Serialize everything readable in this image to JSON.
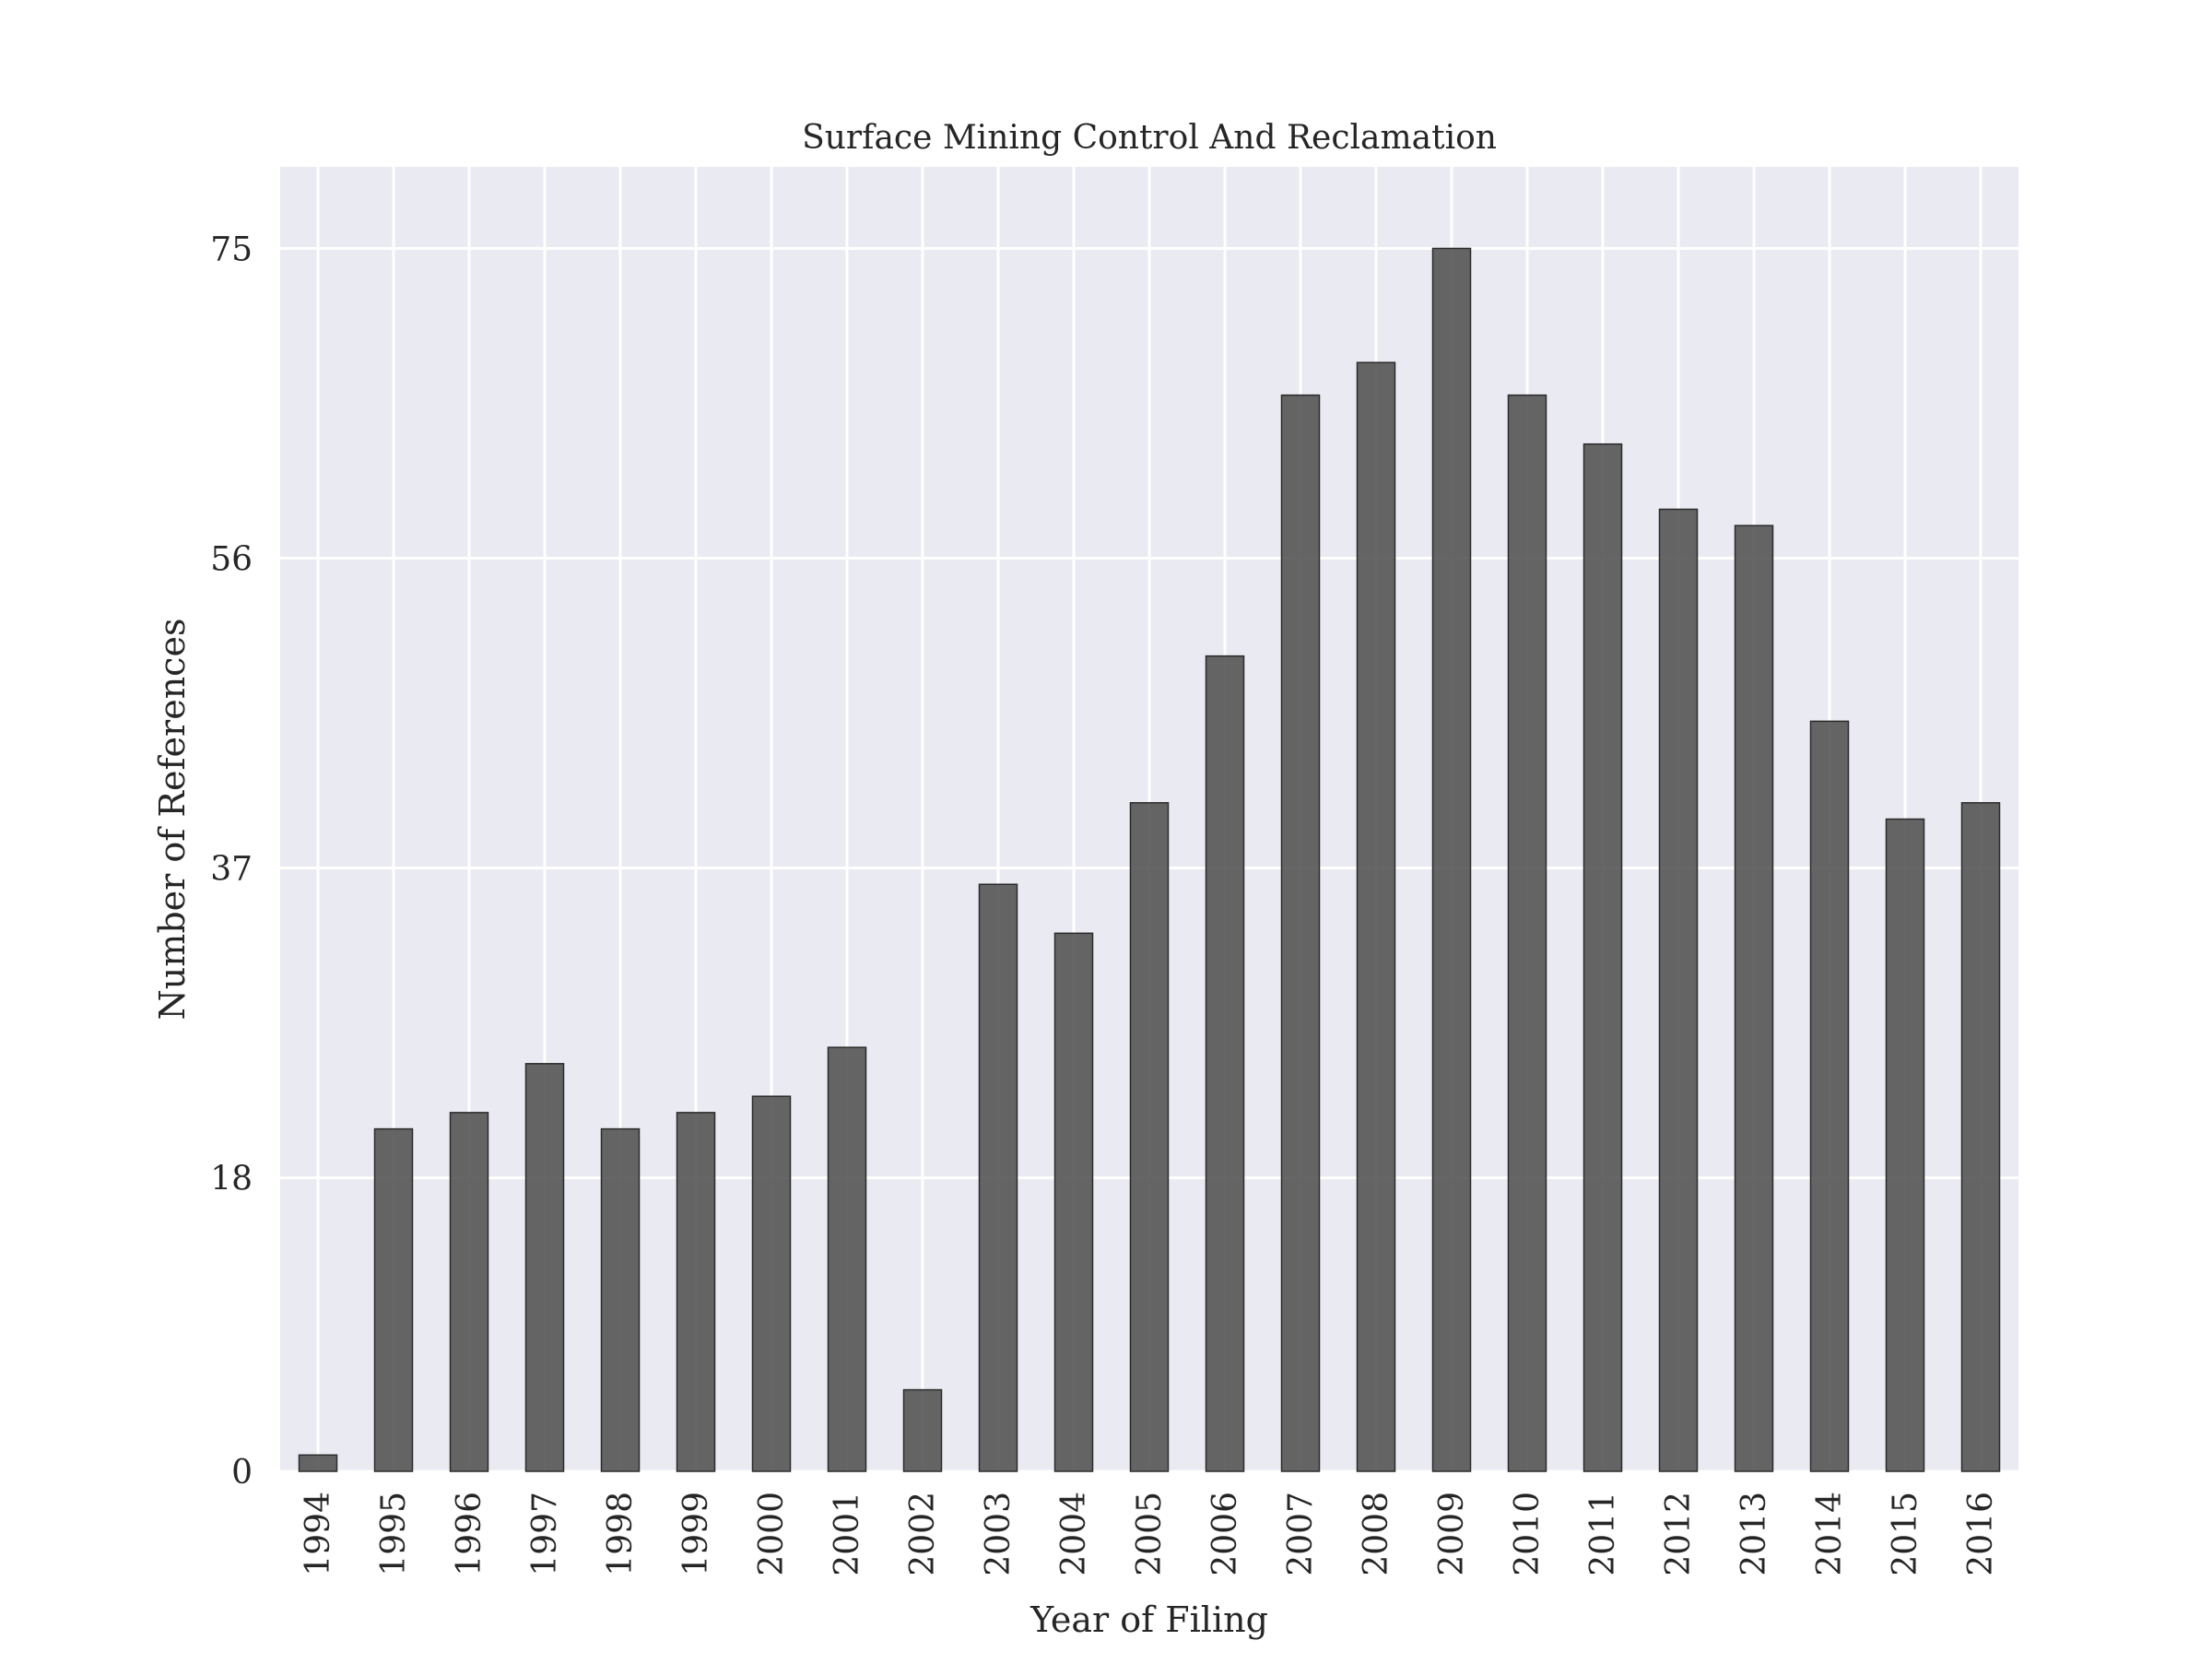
{
  "chart_data": {
    "type": "bar",
    "title": "Surface Mining Control And Reclamation",
    "xlabel": "Year of Filing",
    "ylabel": "Number of References",
    "categories": [
      "1994",
      "1995",
      "1996",
      "1997",
      "1998",
      "1999",
      "2000",
      "2001",
      "2002",
      "2003",
      "2004",
      "2005",
      "2006",
      "2007",
      "2008",
      "2009",
      "2010",
      "2011",
      "2012",
      "2013",
      "2014",
      "2015",
      "2016"
    ],
    "values": [
      1,
      21,
      22,
      25,
      21,
      22,
      23,
      26,
      5,
      36,
      33,
      41,
      50,
      66,
      68,
      75,
      66,
      63,
      59,
      58,
      46,
      40,
      41
    ],
    "yticks": [
      0,
      18,
      37,
      56,
      75
    ],
    "ylim": [
      0,
      80
    ],
    "grid": true,
    "legend": "none",
    "colors": {
      "bar_fill": "#555555",
      "bar_edge": "#2b2b2b",
      "plot_background": "#eaeaf2",
      "grid": "#ffffff"
    }
  }
}
